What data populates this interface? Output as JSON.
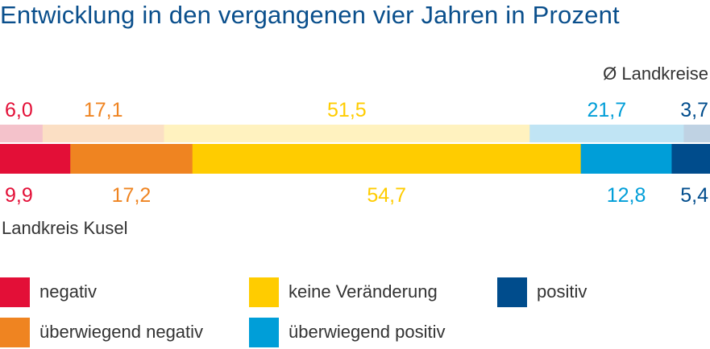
{
  "title": "Entwicklung in den vergangenen vier Jahren in Prozent",
  "chart_data": {
    "type": "bar",
    "orientation": "horizontal-stacked",
    "categories": [
      "Ø Landkreise",
      "Landkreis Kusel"
    ],
    "series": [
      {
        "name": "negativ",
        "values": [
          6.0,
          9.9
        ],
        "labels": [
          "6,0",
          "9,9"
        ],
        "color": "#e30f37",
        "light_color": "#f4c2cb"
      },
      {
        "name": "überwiegend negativ",
        "values": [
          17.1,
          17.2
        ],
        "labels": [
          "17,1",
          "17,2"
        ],
        "color": "#ef8421",
        "light_color": "#fbdfc4"
      },
      {
        "name": "keine Veränderung",
        "values": [
          51.5,
          54.7
        ],
        "labels": [
          "51,5",
          "54,7"
        ],
        "color": "#ffcc00",
        "light_color": "#fff2bf"
      },
      {
        "name": "überwiegend positiv",
        "values": [
          21.7,
          12.8
        ],
        "labels": [
          "21,7",
          "12,8"
        ],
        "color": "#009ed8",
        "light_color": "#c0e4f4"
      },
      {
        "name": "positiv",
        "values": [
          3.7,
          5.4
        ],
        "labels": [
          "3,7",
          "5,4"
        ],
        "color": "#004c8c",
        "light_color": "#bfd2e3"
      }
    ],
    "top_bar_caption": "Ø Landkreise",
    "bottom_bar_caption": "Landkreis Kusel",
    "xlim": [
      0,
      100
    ]
  },
  "legend": [
    {
      "label": "negativ",
      "color": "#e30f37"
    },
    {
      "label": "keine Veränderung",
      "color": "#ffcc00"
    },
    {
      "label": "positiv",
      "color": "#004c8c"
    },
    {
      "label": "überwiegend negativ",
      "color": "#ef8421"
    },
    {
      "label": "überwiegend positiv",
      "color": "#009ed8"
    }
  ]
}
